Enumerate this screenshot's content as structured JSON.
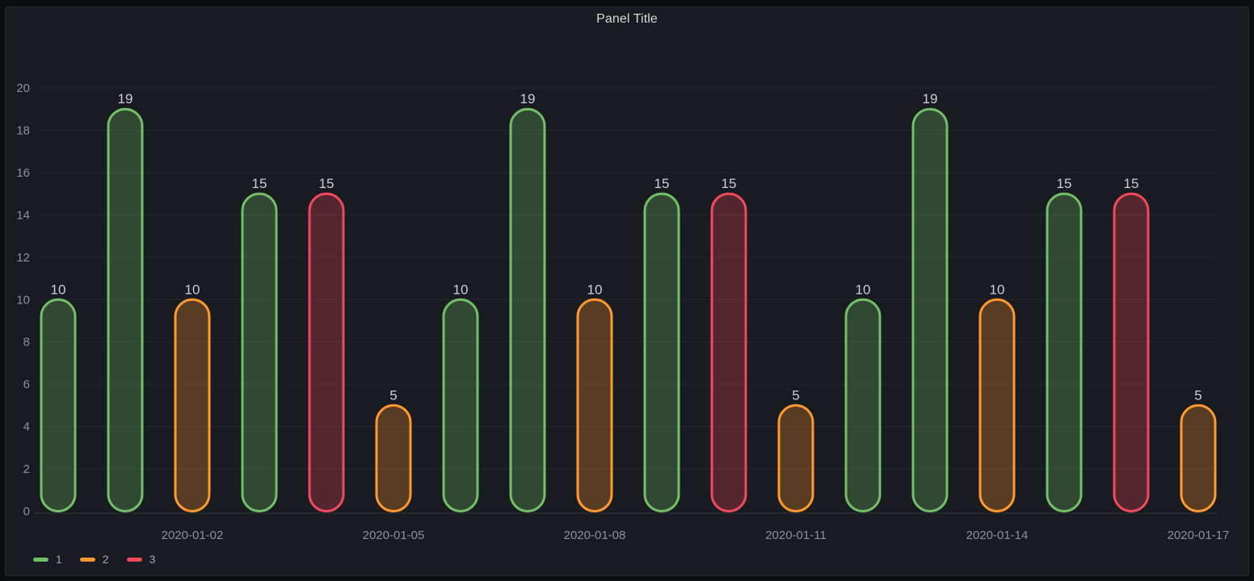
{
  "panel": {
    "title": "Panel Title"
  },
  "colors": {
    "page_background": "#0b0c0e",
    "panel_background": "#181b1f",
    "grid": "rgba(204,204,220,0.08)",
    "axis_line": "rgba(204,204,220,0.15)",
    "tick_text": "rgba(204,204,220,0.65)",
    "value_text": "#ccccdc",
    "title_text": "#d8d9da"
  },
  "chart_data": {
    "type": "bar",
    "title": "Panel Title",
    "xlabel": "",
    "ylabel": "",
    "ylim": [
      0,
      20
    ],
    "y_ticks": [
      0,
      2,
      4,
      6,
      8,
      10,
      12,
      14,
      16,
      18,
      20
    ],
    "grid": true,
    "value_labels": true,
    "bar_style": {
      "shape": "pill",
      "fill_opacity": 0.28,
      "stroke_width": 3
    },
    "legend_position": "bottom-left",
    "series": [
      {
        "name": "1",
        "color": "#73bf69"
      },
      {
        "name": "2",
        "color": "#ff9830"
      },
      {
        "name": "3",
        "color": "#f2495c"
      }
    ],
    "bars": [
      {
        "value": 10,
        "series": "1"
      },
      {
        "value": 19,
        "series": "1"
      },
      {
        "value": 10,
        "series": "2"
      },
      {
        "value": 15,
        "series": "1"
      },
      {
        "value": 15,
        "series": "3"
      },
      {
        "value": 5,
        "series": "2"
      },
      {
        "value": 10,
        "series": "1"
      },
      {
        "value": 19,
        "series": "1"
      },
      {
        "value": 10,
        "series": "2"
      },
      {
        "value": 15,
        "series": "1"
      },
      {
        "value": 15,
        "series": "3"
      },
      {
        "value": 5,
        "series": "2"
      },
      {
        "value": 10,
        "series": "1"
      },
      {
        "value": 19,
        "series": "1"
      },
      {
        "value": 10,
        "series": "2"
      },
      {
        "value": 15,
        "series": "1"
      },
      {
        "value": 15,
        "series": "3"
      },
      {
        "value": 5,
        "series": "2"
      }
    ],
    "x_tick_labels": [
      {
        "bar_index": 2,
        "label": "2020-01-02"
      },
      {
        "bar_index": 5,
        "label": "2020-01-05"
      },
      {
        "bar_index": 8,
        "label": "2020-01-08"
      },
      {
        "bar_index": 11,
        "label": "2020-01-11"
      },
      {
        "bar_index": 14,
        "label": "2020-01-14"
      },
      {
        "bar_index": 17,
        "label": "2020-01-17"
      }
    ]
  }
}
